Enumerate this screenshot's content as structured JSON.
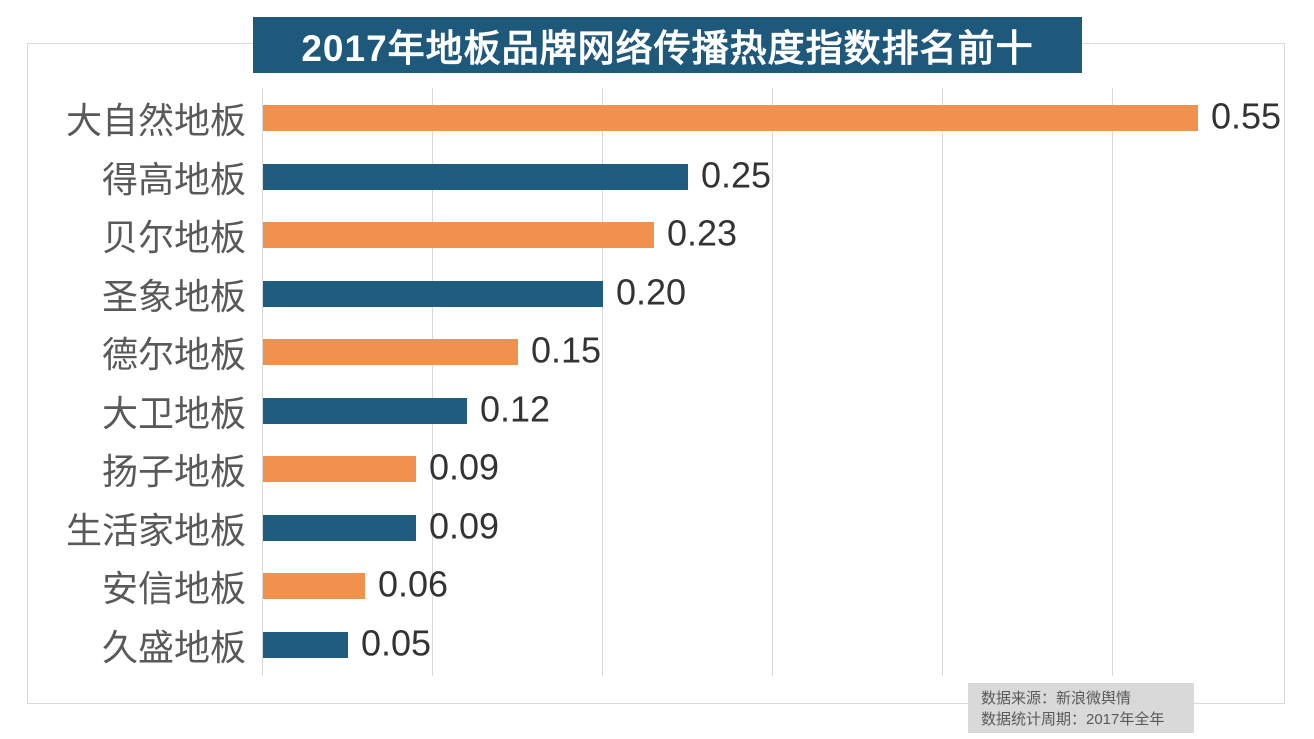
{
  "title": "2017年地板品牌网络传播热度指数排名前十",
  "source": {
    "line1": "数据来源：新浪微舆情",
    "line2": "数据统计周期：2017年全年"
  },
  "colors": {
    "title_bg": "#1e587a",
    "bar_orange": "#f0914e",
    "bar_blue": "#1f5c7e",
    "grid": "#d9d9d9",
    "source_bg": "#d9d9d9",
    "label_color": "#595959",
    "value_color": "#333333"
  },
  "chart_data": {
    "type": "bar",
    "orientation": "horizontal",
    "title": "2017年地板品牌网络传播热度指数排名前十",
    "categories": [
      "大自然地板",
      "得高地板",
      "贝尔地板",
      "圣象地板",
      "德尔地板",
      "大卫地板",
      "扬子地板",
      "生活家地板",
      "安信地板",
      "久盛地板"
    ],
    "values": [
      0.55,
      0.25,
      0.23,
      0.2,
      0.15,
      0.12,
      0.09,
      0.09,
      0.06,
      0.05
    ],
    "value_labels": [
      "0.55",
      "0.25",
      "0.23",
      "0.20",
      "0.15",
      "0.12",
      "0.09",
      "0.09",
      "0.06",
      "0.05"
    ],
    "xlim": [
      0,
      0.6
    ],
    "x_gridlines": [
      0,
      0.1,
      0.2,
      0.3,
      0.4,
      0.5
    ],
    "x_tick_labels_visible": false,
    "legend": "none",
    "bar_color_pattern": [
      "#f0914e",
      "#1f5c7e"
    ]
  }
}
